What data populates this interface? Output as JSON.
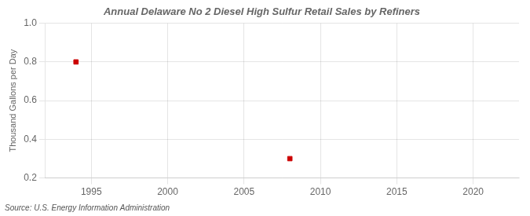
{
  "chart_data": {
    "type": "scatter",
    "title": "Annual Delaware No 2 Diesel High Sulfur Retail Sales by Refiners",
    "ylabel": "Thousand Gallons per Day",
    "annotation": "Source: U.S. Energy Information Administration",
    "x": [
      1994,
      2008
    ],
    "values": [
      0.8,
      0.3
    ],
    "color": "#cc0000",
    "marker": "square",
    "xlim": [
      1992,
      2023
    ],
    "xticks": [
      1995,
      2000,
      2005,
      2010,
      2015,
      2020
    ],
    "ylim": [
      0.2,
      1.0
    ],
    "yticks": [
      0.2,
      0.4,
      0.6,
      0.8,
      {
        "value": 1.0,
        "label": "1.0"
      }
    ],
    "grid": true
  }
}
